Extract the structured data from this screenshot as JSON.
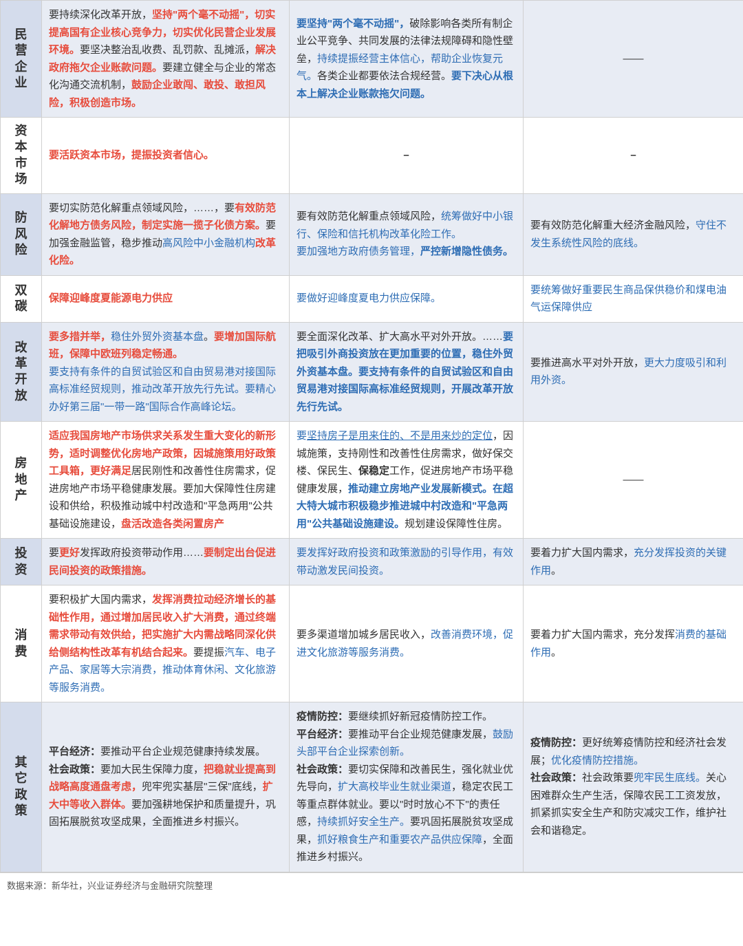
{
  "rows": [
    {
      "label": "民营企业",
      "c1": [
        {
          "t": "要持续深化改革开放，"
        },
        {
          "t": "坚持\"两个毫不动摇\"，切实提高国有企业核心竞争力，切实优化民营企业发展环境。",
          "cls": "red"
        },
        {
          "t": "要坚决整治乱收费、乱罚款、乱摊派，"
        },
        {
          "t": "解决政府拖欠企业账款问题。",
          "cls": "red"
        },
        {
          "t": "要建立健全与企业的常态化沟通交流机制，"
        },
        {
          "t": "鼓励企业敢闯、敢投、敢担风险，积极创造市场。",
          "cls": "red"
        }
      ],
      "c2": [
        {
          "t": "要坚持\"两个毫不动摇\"，",
          "cls": "blue bold"
        },
        {
          "t": "破除影响各类所有制企业公平竞争、共同发展的法律法规障碍和隐性壁垒，"
        },
        {
          "t": "持续提振经营主体信心，帮助企业恢复元气。",
          "cls": "blue"
        },
        {
          "t": "各类企业都要依法合规经营。"
        },
        {
          "t": "要下决心从根本上解决企业账款拖欠问题。",
          "cls": "blue bold"
        }
      ],
      "c3": [
        {
          "t": "——",
          "cls": "center"
        }
      ]
    },
    {
      "label": "资本市场",
      "c1": [
        {
          "t": "要活跃资本市场，提振投资者信心。",
          "cls": "red"
        }
      ],
      "c2": [
        {
          "t": "–",
          "cls": "center bold"
        }
      ],
      "c3": [
        {
          "t": "–",
          "cls": "center bold"
        }
      ]
    },
    {
      "label": "防风险",
      "c1": [
        {
          "t": "要切实防范化解重点领域风险，……，要"
        },
        {
          "t": "有效防范化解地方债务风险，制定实施一揽子化债方案。",
          "cls": "red"
        },
        {
          "t": "要加强金融监管，稳步推动"
        },
        {
          "t": "高风险中小金融机构",
          "cls": "blue"
        },
        {
          "t": "改革化险。",
          "cls": "red"
        }
      ],
      "c2": [
        {
          "t": "要有效防范化解重点领域风险，"
        },
        {
          "t": "统筹做好中小银行、保险和信托机构改革化险工作。",
          "cls": "blue"
        },
        {
          "t": "\n要加强地方政府债务管理，",
          "cls": "blue"
        },
        {
          "t": "严控新增隐性债务。",
          "cls": "blue bold"
        }
      ],
      "c3": [
        {
          "t": "要有效防范化解重大经济金融风险，"
        },
        {
          "t": "守住不发生系统性风险的底线。",
          "cls": "blue"
        }
      ]
    },
    {
      "label": "双碳",
      "c1": [
        {
          "t": "保障迎峰度夏能源电力供应",
          "cls": "red"
        }
      ],
      "c2": [
        {
          "t": "要做好迎峰度夏电力供应保障。",
          "cls": "blue"
        }
      ],
      "c3": [
        {
          "t": "要统筹做好重要民生商品保供稳价和煤电油气运保障供应",
          "cls": "blue"
        }
      ]
    },
    {
      "label": "改革开放",
      "c1": [
        {
          "t": "要多措并举，",
          "cls": "red"
        },
        {
          "t": "稳住外贸外资基本盘",
          "cls": "blue"
        },
        {
          "t": "。"
        },
        {
          "t": "要增加国际航班，保障中欧班列稳定畅通。",
          "cls": "red"
        },
        {
          "t": "\n"
        },
        {
          "t": "要支持有条件的自贸试验区和自由贸易港对接国际高标准经贸规则，推动改革开放先行先试。要精心办好第三届\"一带一路\"国际合作高峰论坛。",
          "cls": "blue"
        }
      ],
      "c2": [
        {
          "t": "要全面深化改革、扩大高水平对外开放。……"
        },
        {
          "t": "要把吸引外商投资放在更加重要的位置，稳住外贸外资基本盘。要支持有条件的自贸试验区和自由贸易港对接国际高标准经贸规则，开展改革开放先行先试。",
          "cls": "blue bold"
        }
      ],
      "c3": [
        {
          "t": "要推进高水平对外开放，"
        },
        {
          "t": "更大力度吸引和利用外资。",
          "cls": "blue"
        }
      ]
    },
    {
      "label": "房地产",
      "c1": [
        {
          "t": "适应我国房地产市场供求关系发生重大变化的新形势，适时调整优化房地产政策，因城施策用好政策工具箱，更好满足",
          "cls": "red"
        },
        {
          "t": "居民刚性和改善性住房需求，促进房地产市场平稳健康发展。要加大保障性住房建设和供给，积极推动城中村改造和\"平急两用\"公共基础设施建设，"
        },
        {
          "t": "盘活改造各类闲置房产",
          "cls": "red"
        }
      ],
      "c2": [
        {
          "t": "要",
          "cls": "blue"
        },
        {
          "t": "坚持房子是用来住的、不是用来炒的定位",
          "cls": "blue u"
        },
        {
          "t": "，因城施策，支持刚性和改善性住房需求，做好保交楼、保民生、"
        },
        {
          "t": "保稳定",
          "cls": "bold"
        },
        {
          "t": "工作，促进房地产市场平稳健康发展，"
        },
        {
          "t": "推动建立房地产业发展新模式。在超大特大城市积极稳步推进城中村改造和\"平急两用\"公共基础设施建设。",
          "cls": "blue bold"
        },
        {
          "t": "规划建设保障性住房。"
        }
      ],
      "c3": [
        {
          "t": "——",
          "cls": "center"
        }
      ]
    },
    {
      "label": "投资",
      "c1": [
        {
          "t": "要"
        },
        {
          "t": "更好",
          "cls": "red"
        },
        {
          "t": "发挥政府投资带动作用……"
        },
        {
          "t": "要制定出台促进民间投资的政策措施。",
          "cls": "red"
        }
      ],
      "c2": [
        {
          "t": "要发挥好政府",
          "cls": "blue"
        },
        {
          "t": "投资和政策激励的引导作用，有效带动激发民间投资。",
          "cls": "blue"
        }
      ],
      "c3": [
        {
          "t": "要着力扩大国内需求，"
        },
        {
          "t": "充分发挥投资的关键作用",
          "cls": "blue"
        },
        {
          "t": "。"
        }
      ]
    },
    {
      "label": "消费",
      "c1": [
        {
          "t": "要积极扩大国内需求，"
        },
        {
          "t": "发挥消费拉动经济增长的基础性作用，通过增加居民收入扩大消费，通过终端需求带动有效供给，把实施扩大内需战略同深化供给侧结构性改革有机结合起来。",
          "cls": "red"
        },
        {
          "t": "要提振"
        },
        {
          "t": "汽车、电子产品、家居等大宗消费，推动体育休闲、文化旅游等服务消费。",
          "cls": "blue"
        }
      ],
      "c2": [
        {
          "t": "要多渠道增加城乡居民收入，"
        },
        {
          "t": "改善消费环境，促进文化旅游等服务消费。",
          "cls": "blue"
        }
      ],
      "c3": [
        {
          "t": "要着力扩大国内需求，充分发挥"
        },
        {
          "t": "消费的基础作用",
          "cls": "blue"
        },
        {
          "t": "。"
        }
      ]
    },
    {
      "label": "其它政策",
      "c1": [
        {
          "t": "平台经济：",
          "cls": "bold"
        },
        {
          "t": "要推动平台企业规范健康持续发展。\n"
        },
        {
          "t": "社会政策：",
          "cls": "bold"
        },
        {
          "t": "要加大民生保障力度，"
        },
        {
          "t": "把稳就业提高到战略高度通盘考虑，",
          "cls": "red"
        },
        {
          "t": "兜牢兜实基层\"三保\"底线，"
        },
        {
          "t": "扩大中等收入群体。",
          "cls": "red"
        },
        {
          "t": "要加强耕地保护和质量提升，巩固拓展脱贫攻坚成果，全面推进乡村振兴。"
        }
      ],
      "c2": [
        {
          "t": "疫情防控：",
          "cls": "bold"
        },
        {
          "t": "要继续抓好新冠疫情防控工作。\n"
        },
        {
          "t": "平台经济：",
          "cls": "bold"
        },
        {
          "t": "要推动平台企业规范健康发展，"
        },
        {
          "t": "鼓励头部平台企业探索创新。",
          "cls": "blue"
        },
        {
          "t": "\n"
        },
        {
          "t": "社会政策：",
          "cls": "bold"
        },
        {
          "t": "要切实保障和改善民生，强化就业优先导向，"
        },
        {
          "t": "扩大高校毕业生就业渠道",
          "cls": "blue"
        },
        {
          "t": "，稳定农民工等重点群体就业。要以\"时时放心不下\"的责任感，"
        },
        {
          "t": "持续抓好安全生产。",
          "cls": "blue"
        },
        {
          "t": "要巩固拓展脱贫攻坚成果，"
        },
        {
          "t": "抓好粮食生产和重要农产品供应保障",
          "cls": "blue"
        },
        {
          "t": "，全面推进乡村振兴。"
        }
      ],
      "c3": [
        {
          "t": "疫情防控：",
          "cls": "bold"
        },
        {
          "t": "更好统筹疫情防控和经济社会发展；"
        },
        {
          "t": "优化疫情防控措施。",
          "cls": "blue"
        },
        {
          "t": "\n"
        },
        {
          "t": "社会政策：",
          "cls": "bold"
        },
        {
          "t": "社会政策要"
        },
        {
          "t": "兜牢民生底线。",
          "cls": "blue"
        },
        {
          "t": "关心困难群众生产生活，保障农民工工资发放，抓紧抓实安全生产和防灾减灾工作，维护社会和谐稳定。"
        }
      ]
    }
  ],
  "footer": "数据来源：新华社，兴业证券经济与金融研究院整理"
}
